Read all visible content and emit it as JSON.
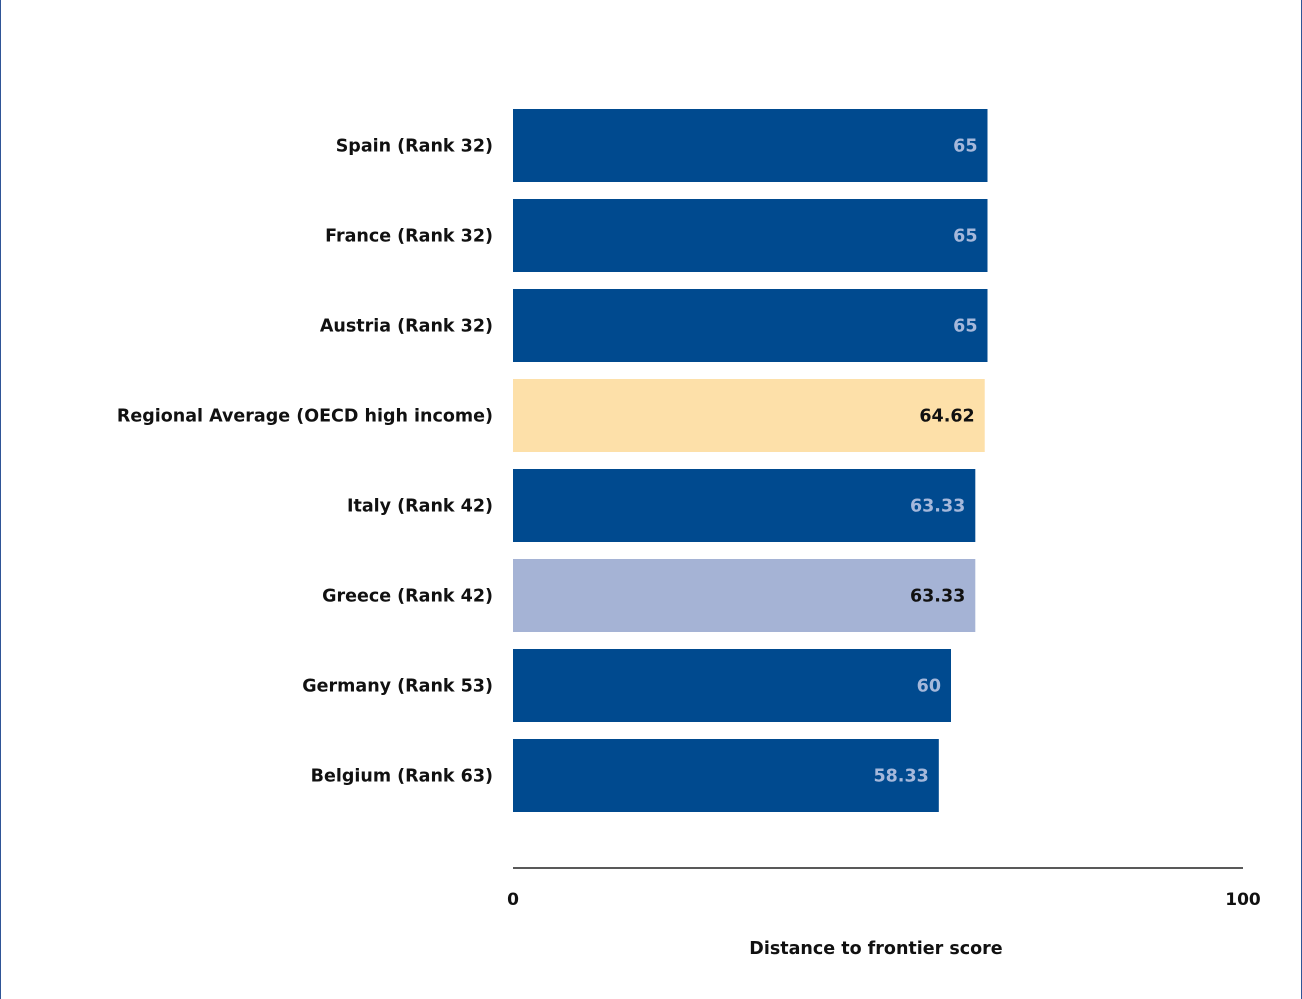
{
  "chart_data": {
    "type": "bar",
    "orientation": "horizontal",
    "categories": [
      "Spain (Rank 32)",
      "France (Rank 32)",
      "Austria (Rank 32)",
      "Regional Average (OECD high income)",
      "Italy (Rank 42)",
      "Greece (Rank 42)",
      "Germany (Rank 53)",
      "Belgium (Rank 63)"
    ],
    "values": [
      65,
      65,
      65,
      64.62,
      63.33,
      63.33,
      60,
      58.33
    ],
    "value_labels": [
      "65",
      "65",
      "65",
      "64.62",
      "63.33",
      "63.33",
      "60",
      "58.33"
    ],
    "bar_colors": [
      "#004a8f",
      "#004a8f",
      "#004a8f",
      "#fde0a9",
      "#004a8f",
      "#a5b3d5",
      "#004a8f",
      "#004a8f"
    ],
    "value_label_colors": [
      "#a5b8db",
      "#a5b8db",
      "#a5b8db",
      "#111111",
      "#a5b8db",
      "#111111",
      "#a5b8db",
      "#a5b8db"
    ],
    "xlabel": "Distance to frontier score",
    "xlim": [
      0,
      100
    ],
    "xticks": [
      "0",
      "100"
    ],
    "grid": false
  }
}
